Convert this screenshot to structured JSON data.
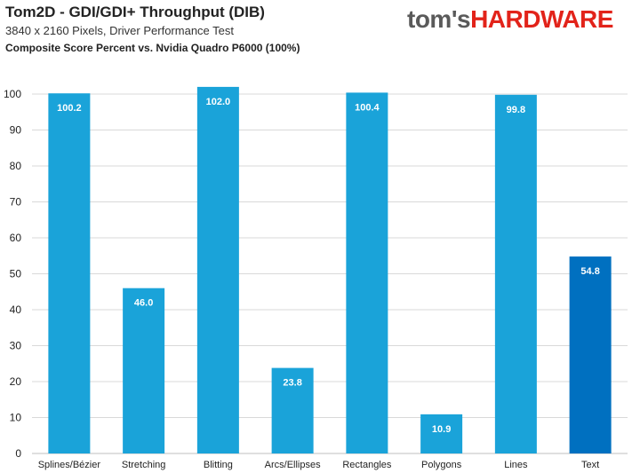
{
  "header": {
    "title": "Tom2D - GDI/GDI+ Throughput (DIB)",
    "subtitle": "3840 x 2160 Pixels, Driver Performance Test",
    "subtitle2": "Composite Score Percent vs. Nvidia Quadro P6000 (100%)"
  },
  "logo": {
    "part1": "tom's",
    "part2": "HARDWARE"
  },
  "colors": {
    "bar": "#1aa3d9",
    "highlight_bar": "#0070c0",
    "grid": "#d9d9d9",
    "logo_gray": "#5a5a5a",
    "logo_red": "#e2231a"
  },
  "chart_data": {
    "type": "bar",
    "categories": [
      "Splines/Bézier",
      "Stretching",
      "Blitting",
      "Arcs/Ellipses",
      "Rectangles",
      "Polygons",
      "Lines",
      "Text"
    ],
    "values": [
      100.2,
      46.0,
      102.0,
      23.8,
      100.4,
      10.9,
      99.8,
      54.8
    ],
    "value_labels": [
      "100.2",
      "46.0",
      "102.0",
      "23.8",
      "100.4",
      "10.9",
      "99.8",
      "54.8"
    ],
    "highlight_index": 7,
    "ylim": [
      0,
      100
    ],
    "yticks": [
      0,
      10,
      20,
      30,
      40,
      50,
      60,
      70,
      80,
      90,
      100
    ],
    "grid": true,
    "xlabel": "",
    "ylabel": ""
  }
}
